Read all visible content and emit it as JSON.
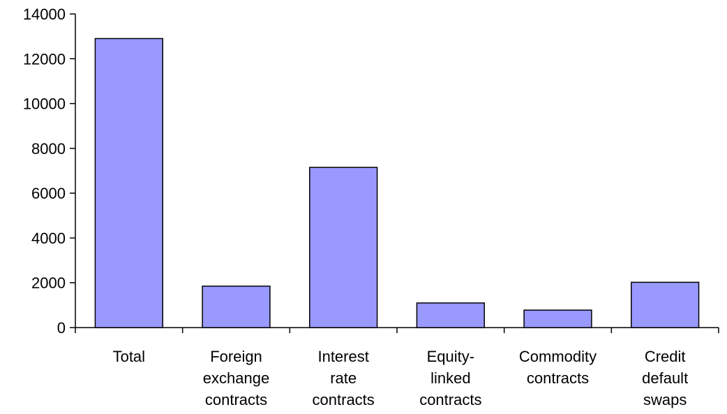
{
  "chart_data": {
    "type": "bar",
    "categories": [
      [
        "Total"
      ],
      [
        "Foreign",
        "exchange",
        "contracts"
      ],
      [
        "Interest",
        "rate",
        "contracts"
      ],
      [
        "Equity-",
        "linked",
        "contracts"
      ],
      [
        "Commodity",
        "contracts"
      ],
      [
        "Credit",
        "default",
        "swaps"
      ]
    ],
    "values": [
      12900,
      1850,
      7150,
      1100,
      780,
      2020
    ],
    "yticks": [
      "0",
      "2000",
      "4000",
      "6000",
      "8000",
      "10000",
      "12000",
      "14000"
    ],
    "ylim": [
      0,
      14000
    ],
    "title": "",
    "xlabel": "",
    "ylabel": "",
    "grid": false,
    "colors": {
      "bar_fill": "#9999ff",
      "bar_stroke": "#000000",
      "axis": "#000000"
    }
  }
}
